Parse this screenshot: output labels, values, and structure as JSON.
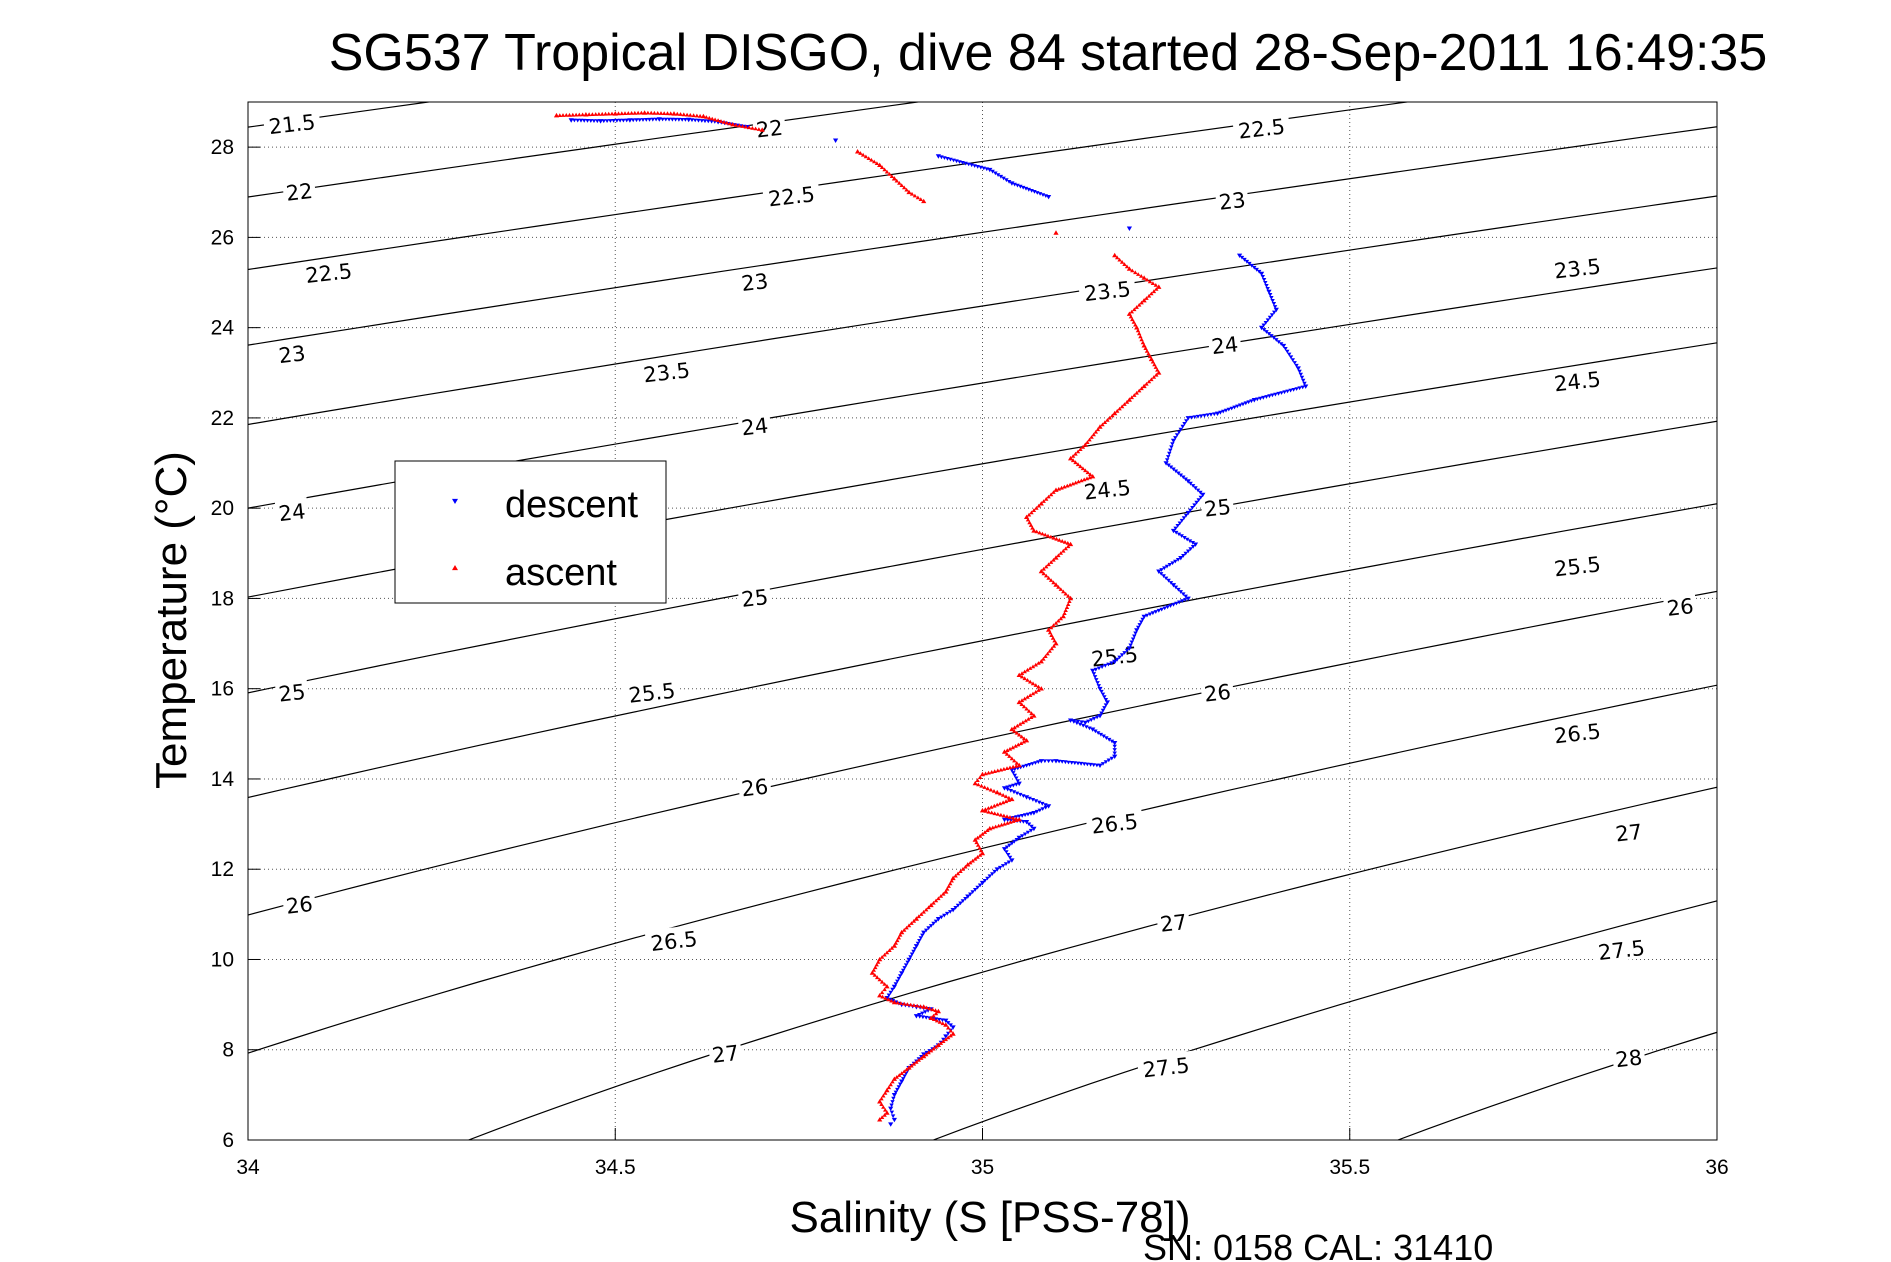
{
  "chart_data": {
    "type": "scatter",
    "title": "SG537 Tropical DISGO, dive 84 started 28-Sep-2011 16:49:35",
    "xlabel": "Salinity (S [PSS-78])",
    "ylabel": "Temperature (°C)",
    "xlim": [
      34,
      36
    ],
    "ylim": [
      6,
      29
    ],
    "xticks": [
      "34",
      "34.5",
      "35",
      "35.5",
      "36"
    ],
    "yticks": [
      "6",
      "8",
      "10",
      "12",
      "14",
      "16",
      "18",
      "20",
      "22",
      "24",
      "26",
      "28"
    ],
    "grid": true,
    "legend": {
      "placement": "middle-left",
      "entries": [
        "descent",
        "ascent"
      ]
    },
    "footer": "SN: 0158  CAL: 31410",
    "density_contours": {
      "color": "#000000",
      "levels": [
        21.5,
        22,
        22.5,
        23,
        23.5,
        24,
        24.5,
        25,
        25.5,
        26,
        26.5,
        27,
        27.5,
        28
      ],
      "labels": [
        {
          "text": "21.5",
          "s": 34.06,
          "t": 28.5
        },
        {
          "text": "22",
          "s": 34.07,
          "t": 27.0
        },
        {
          "text": "22.5",
          "s": 34.11,
          "t": 25.2
        },
        {
          "text": "23",
          "s": 34.06,
          "t": 23.4
        },
        {
          "text": "24",
          "s": 34.06,
          "t": 19.9
        },
        {
          "text": "25",
          "s": 34.06,
          "t": 15.9
        },
        {
          "text": "26",
          "s": 34.07,
          "t": 11.2
        },
        {
          "text": "22",
          "s": 34.71,
          "t": 28.4
        },
        {
          "text": "22.5",
          "s": 34.74,
          "t": 26.9
        },
        {
          "text": "23",
          "s": 34.69,
          "t": 25.0
        },
        {
          "text": "23.5",
          "s": 34.57,
          "t": 23.0
        },
        {
          "text": "24",
          "s": 34.69,
          "t": 21.8
        },
        {
          "text": "25",
          "s": 34.69,
          "t": 18.0
        },
        {
          "text": "25.5",
          "s": 34.55,
          "t": 15.9
        },
        {
          "text": "26",
          "s": 34.69,
          "t": 13.8
        },
        {
          "text": "26.5",
          "s": 34.58,
          "t": 10.4
        },
        {
          "text": "27",
          "s": 34.65,
          "t": 7.9
        },
        {
          "text": "22.5",
          "s": 35.38,
          "t": 28.4
        },
        {
          "text": "23",
          "s": 35.34,
          "t": 26.8
        },
        {
          "text": "23.5",
          "s": 35.17,
          "t": 24.8
        },
        {
          "text": "24",
          "s": 35.33,
          "t": 23.6
        },
        {
          "text": "24.5",
          "s": 35.17,
          "t": 20.4
        },
        {
          "text": "25",
          "s": 35.32,
          "t": 20.0
        },
        {
          "text": "25.5",
          "s": 35.18,
          "t": 16.7
        },
        {
          "text": "26",
          "s": 35.32,
          "t": 15.9
        },
        {
          "text": "26.5",
          "s": 35.18,
          "t": 13.0
        },
        {
          "text": "27",
          "s": 35.26,
          "t": 10.8
        },
        {
          "text": "27.5",
          "s": 35.25,
          "t": 7.6
        },
        {
          "text": "23.5",
          "s": 35.81,
          "t": 25.3
        },
        {
          "text": "24.5",
          "s": 35.81,
          "t": 22.8
        },
        {
          "text": "25.5",
          "s": 35.81,
          "t": 18.7
        },
        {
          "text": "26",
          "s": 35.95,
          "t": 17.8
        },
        {
          "text": "26.5",
          "s": 35.81,
          "t": 15.0
        },
        {
          "text": "27",
          "s": 35.88,
          "t": 12.8
        },
        {
          "text": "27.5",
          "s": 35.87,
          "t": 10.2
        },
        {
          "text": "28",
          "s": 35.88,
          "t": 7.8
        }
      ]
    },
    "series": [
      {
        "name": "descent",
        "color": "#0000ff",
        "marker": "triangle-down",
        "points": [
          [
            34.44,
            28.6
          ],
          [
            34.48,
            28.58
          ],
          [
            34.52,
            28.6
          ],
          [
            34.56,
            28.62
          ],
          [
            34.6,
            28.61
          ],
          [
            34.64,
            28.56
          ],
          [
            34.68,
            28.45
          ],
          [
            34.8,
            28.15
          ],
          [
            34.94,
            27.8
          ],
          [
            35.01,
            27.5
          ],
          [
            35.04,
            27.2
          ],
          [
            35.09,
            26.9
          ],
          [
            35.2,
            26.2
          ],
          [
            35.35,
            25.6
          ],
          [
            35.38,
            25.2
          ],
          [
            35.39,
            24.8
          ],
          [
            35.4,
            24.4
          ],
          [
            35.38,
            24.0
          ],
          [
            35.41,
            23.6
          ],
          [
            35.43,
            23.1
          ],
          [
            35.44,
            22.7
          ],
          [
            35.37,
            22.4
          ],
          [
            35.32,
            22.1
          ],
          [
            35.28,
            22.0
          ],
          [
            35.26,
            21.5
          ],
          [
            35.25,
            21.0
          ],
          [
            35.28,
            20.6
          ],
          [
            35.3,
            20.3
          ],
          [
            35.28,
            19.9
          ],
          [
            35.26,
            19.5
          ],
          [
            35.29,
            19.2
          ],
          [
            35.27,
            18.9
          ],
          [
            35.24,
            18.6
          ],
          [
            35.26,
            18.3
          ],
          [
            35.28,
            18.0
          ],
          [
            35.22,
            17.6
          ],
          [
            35.21,
            17.3
          ],
          [
            35.2,
            16.9
          ],
          [
            35.18,
            16.6
          ],
          [
            35.15,
            16.4
          ],
          [
            35.16,
            16.0
          ],
          [
            35.17,
            15.7
          ],
          [
            35.16,
            15.4
          ],
          [
            35.14,
            15.25
          ],
          [
            35.12,
            15.3
          ],
          [
            35.15,
            15.1
          ],
          [
            35.18,
            14.8
          ],
          [
            35.18,
            14.5
          ],
          [
            35.16,
            14.3
          ],
          [
            35.1,
            14.4
          ],
          [
            35.08,
            14.4
          ],
          [
            35.04,
            14.2
          ],
          [
            35.05,
            13.9
          ],
          [
            35.03,
            13.8
          ],
          [
            35.06,
            13.6
          ],
          [
            35.09,
            13.4
          ],
          [
            35.07,
            13.25
          ],
          [
            35.03,
            13.1
          ],
          [
            35.06,
            13.05
          ],
          [
            35.07,
            12.9
          ],
          [
            35.05,
            12.7
          ],
          [
            35.03,
            12.45
          ],
          [
            35.04,
            12.2
          ],
          [
            35.02,
            12.0
          ],
          [
            35.0,
            11.7
          ],
          [
            34.98,
            11.4
          ],
          [
            34.96,
            11.1
          ],
          [
            34.94,
            10.9
          ],
          [
            34.92,
            10.6
          ],
          [
            34.91,
            10.3
          ],
          [
            34.9,
            10.0
          ],
          [
            34.89,
            9.7
          ],
          [
            34.88,
            9.4
          ],
          [
            34.87,
            9.15
          ],
          [
            34.89,
            9.0
          ],
          [
            34.91,
            8.95
          ],
          [
            34.93,
            8.9
          ],
          [
            34.91,
            8.75
          ],
          [
            34.95,
            8.65
          ],
          [
            34.96,
            8.5
          ],
          [
            34.95,
            8.3
          ],
          [
            34.94,
            8.1
          ],
          [
            34.92,
            7.9
          ],
          [
            34.9,
            7.6
          ],
          [
            34.89,
            7.3
          ],
          [
            34.88,
            7.0
          ],
          [
            34.875,
            6.7
          ],
          [
            34.88,
            6.45
          ],
          [
            34.875,
            6.35
          ]
        ]
      },
      {
        "name": "ascent",
        "color": "#ff0000",
        "marker": "triangle-up",
        "points": [
          [
            34.42,
            28.7
          ],
          [
            34.46,
            28.72
          ],
          [
            34.5,
            28.74
          ],
          [
            34.54,
            28.76
          ],
          [
            34.58,
            28.74
          ],
          [
            34.62,
            28.68
          ],
          [
            34.66,
            28.5
          ],
          [
            34.7,
            28.38
          ],
          [
            34.83,
            27.9
          ],
          [
            34.86,
            27.6
          ],
          [
            34.88,
            27.3
          ],
          [
            34.9,
            27.0
          ],
          [
            34.92,
            26.8
          ],
          [
            35.1,
            26.1
          ],
          [
            35.18,
            25.6
          ],
          [
            35.2,
            25.3
          ],
          [
            35.22,
            25.1
          ],
          [
            35.24,
            24.9
          ],
          [
            35.22,
            24.6
          ],
          [
            35.2,
            24.3
          ],
          [
            35.21,
            24.0
          ],
          [
            35.22,
            23.6
          ],
          [
            35.23,
            23.3
          ],
          [
            35.24,
            23.0
          ],
          [
            35.22,
            22.7
          ],
          [
            35.2,
            22.4
          ],
          [
            35.18,
            22.1
          ],
          [
            35.16,
            21.8
          ],
          [
            35.14,
            21.4
          ],
          [
            35.12,
            21.1
          ],
          [
            35.15,
            20.7
          ],
          [
            35.1,
            20.4
          ],
          [
            35.08,
            20.1
          ],
          [
            35.06,
            19.8
          ],
          [
            35.07,
            19.5
          ],
          [
            35.12,
            19.2
          ],
          [
            35.1,
            18.9
          ],
          [
            35.08,
            18.6
          ],
          [
            35.1,
            18.3
          ],
          [
            35.12,
            18.0
          ],
          [
            35.11,
            17.6
          ],
          [
            35.09,
            17.3
          ],
          [
            35.1,
            17.0
          ],
          [
            35.08,
            16.6
          ],
          [
            35.05,
            16.3
          ],
          [
            35.08,
            16.0
          ],
          [
            35.05,
            15.7
          ],
          [
            35.07,
            15.4
          ],
          [
            35.04,
            15.1
          ],
          [
            35.06,
            14.85
          ],
          [
            35.03,
            14.6
          ],
          [
            35.05,
            14.3
          ],
          [
            35.0,
            14.1
          ],
          [
            34.99,
            13.9
          ],
          [
            35.02,
            13.7
          ],
          [
            35.04,
            13.55
          ],
          [
            35.0,
            13.3
          ],
          [
            35.05,
            13.1
          ],
          [
            35.01,
            12.9
          ],
          [
            34.99,
            12.65
          ],
          [
            35.0,
            12.35
          ],
          [
            34.98,
            12.1
          ],
          [
            34.96,
            11.8
          ],
          [
            34.95,
            11.5
          ],
          [
            34.93,
            11.2
          ],
          [
            34.91,
            10.9
          ],
          [
            34.89,
            10.6
          ],
          [
            34.88,
            10.3
          ],
          [
            34.86,
            10.0
          ],
          [
            34.85,
            9.7
          ],
          [
            34.87,
            9.4
          ],
          [
            34.86,
            9.2
          ],
          [
            34.88,
            9.05
          ],
          [
            34.92,
            8.95
          ],
          [
            34.94,
            8.85
          ],
          [
            34.93,
            8.7
          ],
          [
            34.95,
            8.55
          ],
          [
            34.96,
            8.35
          ],
          [
            34.94,
            8.1
          ],
          [
            34.92,
            7.85
          ],
          [
            34.9,
            7.6
          ],
          [
            34.88,
            7.35
          ],
          [
            34.87,
            7.1
          ],
          [
            34.86,
            6.85
          ],
          [
            34.87,
            6.6
          ],
          [
            34.86,
            6.45
          ]
        ]
      }
    ]
  }
}
